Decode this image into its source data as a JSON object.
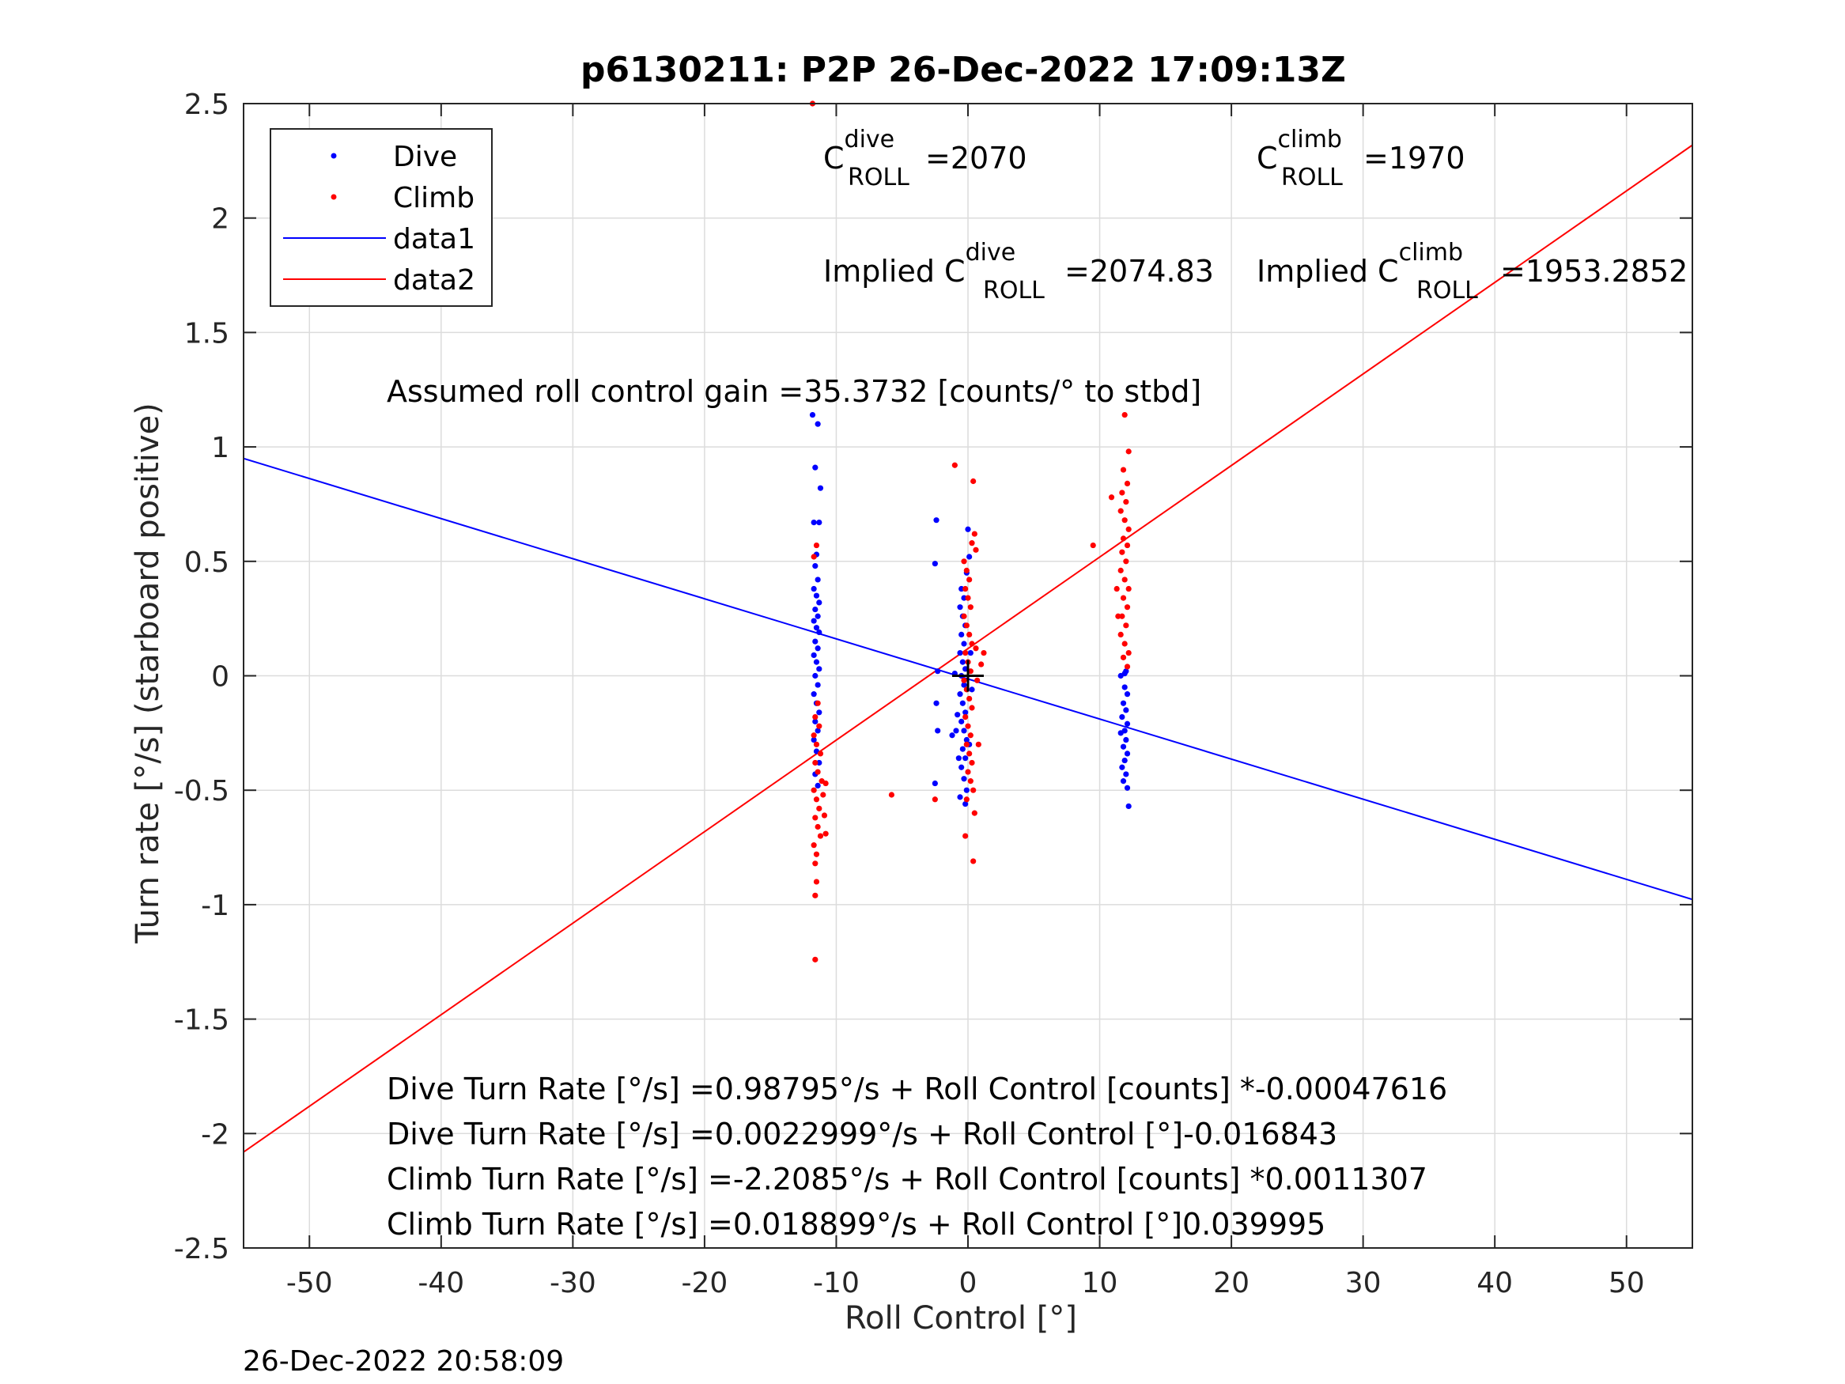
{
  "chart_data": {
    "type": "scatter",
    "title": "p6130211: P2P 26-Dec-2022 17:09:13Z",
    "xlabel": "Roll Control [°]",
    "ylabel": "Turn rate [°/s] (starboard positive)",
    "xlim": [
      -55,
      55
    ],
    "ylim": [
      -2.5,
      2.5
    ],
    "xticks": [
      -50,
      -40,
      -30,
      -20,
      -10,
      0,
      10,
      20,
      30,
      40,
      50
    ],
    "xtick_labels": [
      "-50",
      "-40",
      "-30",
      "-20",
      "-10",
      "0",
      "10",
      "20",
      "30",
      "40",
      "50"
    ],
    "yticks": [
      -2.5,
      -2,
      -1.5,
      -1,
      -0.5,
      0,
      0.5,
      1,
      1.5,
      2,
      2.5
    ],
    "ytick_labels": [
      "-2.5",
      "-2",
      "-1.5",
      "-1",
      "-0.5",
      "0",
      "0.5",
      "1",
      "1.5",
      "2",
      "2.5"
    ],
    "grid": true,
    "legend_position": "top-left",
    "legend": [
      "Dive",
      "Climb",
      "data1",
      "data2"
    ],
    "colors": {
      "dive": "#0000ff",
      "climb": "#ff0000",
      "marker": "#000000"
    },
    "series": [
      {
        "name": "Dive",
        "kind": "points",
        "points": [
          [
            -11.8,
            1.14
          ],
          [
            -11.6,
            0.91
          ],
          [
            -11.4,
            1.1
          ],
          [
            -11.2,
            0.82
          ],
          [
            -11.7,
            0.67
          ],
          [
            -11.3,
            0.67
          ],
          [
            -11.5,
            0.53
          ],
          [
            -11.6,
            0.48
          ],
          [
            -11.4,
            0.42
          ],
          [
            -11.7,
            0.38
          ],
          [
            -11.5,
            0.35
          ],
          [
            -11.3,
            0.32
          ],
          [
            -11.6,
            0.29
          ],
          [
            -11.4,
            0.26
          ],
          [
            -11.7,
            0.24
          ],
          [
            -11.5,
            0.21
          ],
          [
            -11.3,
            0.19
          ],
          [
            -11.6,
            0.15
          ],
          [
            -11.4,
            0.12
          ],
          [
            -11.7,
            0.09
          ],
          [
            -11.5,
            0.06
          ],
          [
            -11.3,
            0.03
          ],
          [
            -11.6,
            0.0
          ],
          [
            -11.4,
            -0.04
          ],
          [
            -11.7,
            -0.08
          ],
          [
            -11.5,
            -0.12
          ],
          [
            -11.3,
            -0.16
          ],
          [
            -11.6,
            -0.2
          ],
          [
            -11.4,
            -0.24
          ],
          [
            -11.7,
            -0.28
          ],
          [
            -11.5,
            -0.33
          ],
          [
            -11.3,
            -0.38
          ],
          [
            -11.6,
            -0.43
          ],
          [
            -11.4,
            -0.48
          ],
          [
            -2.4,
            0.68
          ],
          [
            -2.5,
            0.49
          ],
          [
            -2.3,
            0.02
          ],
          [
            -2.4,
            -0.12
          ],
          [
            -2.3,
            -0.24
          ],
          [
            -2.5,
            -0.47
          ],
          [
            -1.2,
            -0.26
          ],
          [
            -0.8,
            -0.17
          ],
          [
            -0.9,
            -0.24
          ],
          [
            -0.7,
            -0.36
          ],
          [
            -1.0,
            0.01
          ],
          [
            -0.6,
            -0.53
          ],
          [
            -0.5,
            0.38
          ],
          [
            -0.3,
            0.34
          ],
          [
            -0.6,
            0.3
          ],
          [
            -0.4,
            0.26
          ],
          [
            -0.2,
            0.22
          ],
          [
            -0.5,
            0.18
          ],
          [
            -0.3,
            0.14
          ],
          [
            -0.6,
            0.1
          ],
          [
            -0.4,
            0.06
          ],
          [
            -0.2,
            0.03
          ],
          [
            -0.5,
            0.0
          ],
          [
            -0.3,
            -0.04
          ],
          [
            -0.6,
            -0.08
          ],
          [
            -0.4,
            -0.12
          ],
          [
            -0.2,
            -0.16
          ],
          [
            -0.5,
            -0.2
          ],
          [
            -0.3,
            -0.24
          ],
          [
            -0.1,
            -0.28
          ],
          [
            -0.4,
            -0.32
          ],
          [
            -0.2,
            -0.36
          ],
          [
            -0.5,
            -0.4
          ],
          [
            -0.3,
            -0.45
          ],
          [
            -0.1,
            -0.5
          ],
          [
            -0.2,
            -0.56
          ],
          [
            0.0,
            0.64
          ],
          [
            0.1,
            0.52
          ],
          [
            -0.1,
            0.45
          ],
          [
            0.2,
            0.1
          ],
          [
            0.3,
            -0.06
          ],
          [
            0.1,
            -0.3
          ],
          [
            11.6,
            0.0
          ],
          [
            11.9,
            -0.05
          ],
          [
            12.1,
            -0.08
          ],
          [
            11.8,
            -0.12
          ],
          [
            12.0,
            -0.15
          ],
          [
            11.7,
            -0.18
          ],
          [
            12.1,
            -0.21
          ],
          [
            11.9,
            -0.24
          ],
          [
            11.6,
            -0.25
          ],
          [
            12.0,
            -0.28
          ],
          [
            11.8,
            -0.31
          ],
          [
            12.1,
            -0.34
          ],
          [
            11.9,
            -0.37
          ],
          [
            11.7,
            -0.4
          ],
          [
            12.0,
            -0.43
          ],
          [
            11.8,
            -0.46
          ],
          [
            12.1,
            -0.49
          ],
          [
            12.2,
            -0.57
          ],
          [
            11.9,
            0.01
          ],
          [
            12.0,
            0.02
          ]
        ]
      },
      {
        "name": "Climb",
        "kind": "points",
        "points": [
          [
            -11.8,
            2.5
          ],
          [
            -11.5,
            0.57
          ],
          [
            -11.7,
            0.52
          ],
          [
            -11.4,
            -0.12
          ],
          [
            -11.6,
            -0.18
          ],
          [
            -11.3,
            -0.22
          ],
          [
            -11.7,
            -0.26
          ],
          [
            -11.5,
            -0.3
          ],
          [
            -11.2,
            -0.34
          ],
          [
            -11.6,
            -0.38
          ],
          [
            -11.4,
            -0.42
          ],
          [
            -11.1,
            -0.46
          ],
          [
            -11.7,
            -0.5
          ],
          [
            -11.5,
            -0.54
          ],
          [
            -11.3,
            -0.58
          ],
          [
            -11.6,
            -0.62
          ],
          [
            -11.4,
            -0.66
          ],
          [
            -11.2,
            -0.7
          ],
          [
            -11.7,
            -0.74
          ],
          [
            -11.5,
            -0.78
          ],
          [
            -11.6,
            -0.82
          ],
          [
            -11.5,
            -0.9
          ],
          [
            -11.6,
            -0.96
          ],
          [
            -11.6,
            -1.24
          ],
          [
            -10.8,
            -0.47
          ],
          [
            -10.9,
            -0.61
          ],
          [
            -10.8,
            -0.69
          ],
          [
            -11.0,
            -0.52
          ],
          [
            -5.8,
            -0.52
          ],
          [
            -2.5,
            -0.54
          ],
          [
            -1.0,
            0.92
          ],
          [
            -0.3,
            0.5
          ],
          [
            -0.1,
            0.46
          ],
          [
            0.1,
            0.42
          ],
          [
            -0.2,
            0.38
          ],
          [
            0.0,
            0.34
          ],
          [
            0.2,
            0.3
          ],
          [
            -0.3,
            0.26
          ],
          [
            -0.1,
            0.22
          ],
          [
            0.1,
            0.18
          ],
          [
            0.3,
            0.14
          ],
          [
            -0.2,
            0.1
          ],
          [
            0.0,
            0.06
          ],
          [
            0.2,
            0.02
          ],
          [
            -0.3,
            -0.02
          ],
          [
            -0.1,
            -0.06
          ],
          [
            0.1,
            -0.1
          ],
          [
            0.3,
            -0.14
          ],
          [
            -0.2,
            -0.18
          ],
          [
            0.0,
            -0.22
          ],
          [
            0.2,
            -0.26
          ],
          [
            -0.1,
            -0.3
          ],
          [
            0.1,
            -0.34
          ],
          [
            0.3,
            -0.38
          ],
          [
            0.0,
            -0.42
          ],
          [
            0.2,
            -0.46
          ],
          [
            0.4,
            -0.5
          ],
          [
            -0.1,
            -0.54
          ],
          [
            0.4,
            0.85
          ],
          [
            0.5,
            0.62
          ],
          [
            0.3,
            0.58
          ],
          [
            0.6,
            0.55
          ],
          [
            -0.2,
            -0.7
          ],
          [
            0.4,
            -0.81
          ],
          [
            0.6,
            0.12
          ],
          [
            0.7,
            -0.02
          ],
          [
            1.2,
            0.1
          ],
          [
            1.0,
            0.05
          ],
          [
            0.8,
            -0.3
          ],
          [
            0.5,
            -0.6
          ],
          [
            11.9,
            1.14
          ],
          [
            12.2,
            0.98
          ],
          [
            11.8,
            0.9
          ],
          [
            12.1,
            0.84
          ],
          [
            11.7,
            0.8
          ],
          [
            12.0,
            0.76
          ],
          [
            11.6,
            0.72
          ],
          [
            11.9,
            0.68
          ],
          [
            12.2,
            0.64
          ],
          [
            11.8,
            0.6
          ],
          [
            12.1,
            0.57
          ],
          [
            11.7,
            0.54
          ],
          [
            12.0,
            0.5
          ],
          [
            11.6,
            0.46
          ],
          [
            11.9,
            0.42
          ],
          [
            12.2,
            0.38
          ],
          [
            11.8,
            0.34
          ],
          [
            12.1,
            0.3
          ],
          [
            11.7,
            0.26
          ],
          [
            12.0,
            0.22
          ],
          [
            11.6,
            0.18
          ],
          [
            11.9,
            0.14
          ],
          [
            12.2,
            0.1
          ],
          [
            11.8,
            0.08
          ],
          [
            12.1,
            0.04
          ],
          [
            11.3,
            0.38
          ],
          [
            11.4,
            0.26
          ],
          [
            10.9,
            0.78
          ],
          [
            9.5,
            0.57
          ]
        ]
      },
      {
        "name": "data1",
        "kind": "line",
        "x": [
          -55,
          55
        ],
        "y": [
          0.9494,
          -0.977
        ]
      },
      {
        "name": "data2",
        "kind": "line",
        "x": [
          -55,
          55
        ],
        "y": [
          -2.0808,
          2.3186
        ]
      }
    ]
  },
  "annotations": {
    "c_dive_base": "C",
    "c_dive_sup": "dive",
    "c_dive_sub": "ROLL",
    "c_dive_val": "=2070",
    "c_climb_base": "C",
    "c_climb_sup": "climb",
    "c_climb_sub": "ROLL",
    "c_climb_val": "=1970",
    "implied_dive_prefix": "Implied C",
    "implied_dive_sup": "dive",
    "implied_dive_sub": "ROLL",
    "implied_dive_val": "=2074.83",
    "implied_climb_prefix": "Implied C",
    "implied_climb_sup": "climb",
    "implied_climb_sub": "ROLL",
    "implied_climb_val": "=1953.2852",
    "gain": "Assumed roll control gain =35.3732 [counts/° to stbd]",
    "eq1": "Dive Turn Rate [°/s] =0.98795°/s + Roll Control [counts] *-0.00047616",
    "eq2": "Dive Turn Rate [°/s] =0.0022999°/s + Roll Control [°]-0.016843",
    "eq3": "Climb Turn Rate [°/s] =-2.2085°/s + Roll Control [counts] *0.0011307",
    "eq4": "Climb Turn Rate [°/s] =0.018899°/s + Roll Control [°]0.039995"
  },
  "timestamp": "26-Dec-2022 20:58:09"
}
